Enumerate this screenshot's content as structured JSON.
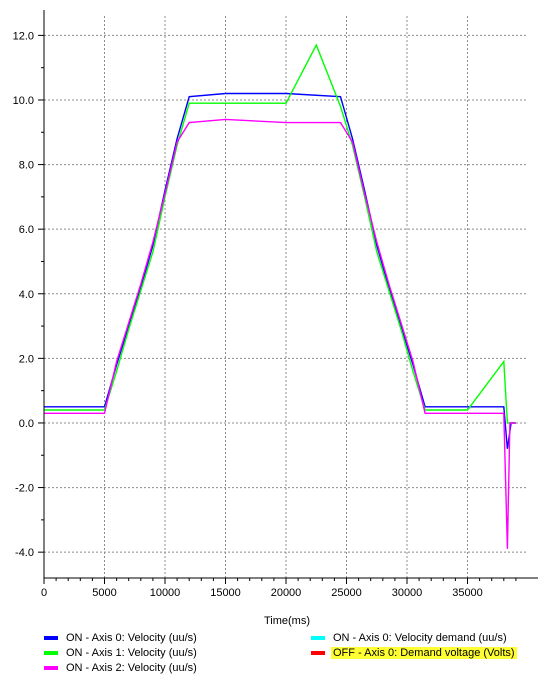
{
  "chart_data": {
    "type": "line",
    "xlabel": "Time(ms)",
    "ylabel": "",
    "xlim": [
      0,
      40000
    ],
    "ylim": [
      -4.8,
      12.6
    ],
    "xticks": [
      0,
      5000,
      10000,
      15000,
      20000,
      25000,
      30000,
      35000
    ],
    "xtick_labels": [
      "0",
      "5000",
      "10000",
      "15000",
      "20000",
      "25000",
      "30000",
      "35000"
    ],
    "yticks": [
      -4,
      -2,
      0,
      2,
      4,
      6,
      8,
      10,
      12
    ],
    "ytick_labels": [
      "-4.0",
      "-2.0",
      "0.0",
      "2.0",
      "4.0",
      "6.0",
      "8.0",
      "10.0",
      "12.0"
    ],
    "grid": true,
    "legend_position": "bottom",
    "series": [
      {
        "name": "Axis 0: Velocity (uu/s)",
        "state": "ON",
        "color": "#0000ff",
        "x": [
          0,
          5000,
          6000,
          7000,
          8000,
          9000,
          10000,
          11000,
          12000,
          15000,
          20000,
          24500,
          25500,
          26500,
          27500,
          28500,
          29500,
          30500,
          31500,
          35000,
          38000,
          38300,
          38600,
          39000
        ],
        "y": [
          0.5,
          0.5,
          1.8,
          3.0,
          4.2,
          5.5,
          7.2,
          8.8,
          10.1,
          10.2,
          10.2,
          10.1,
          8.8,
          7.2,
          5.5,
          4.2,
          3.0,
          1.8,
          0.5,
          0.5,
          0.5,
          -0.8,
          0.0,
          0.0
        ]
      },
      {
        "name": "Axis 1: Velocity (uu/s)",
        "state": "ON",
        "color": "#00ff00",
        "x": [
          0,
          5000,
          6000,
          7000,
          8000,
          9000,
          10000,
          11000,
          12000,
          15000,
          20000,
          22500,
          24500,
          25500,
          26500,
          27500,
          28500,
          29500,
          30500,
          31500,
          35000,
          38000,
          38300,
          39000
        ],
        "y": [
          0.4,
          0.4,
          1.6,
          2.9,
          4.1,
          5.3,
          7.0,
          8.6,
          9.9,
          9.9,
          9.9,
          11.7,
          9.8,
          8.6,
          7.0,
          5.3,
          4.1,
          2.9,
          1.6,
          0.4,
          0.4,
          1.9,
          0.0,
          0.0
        ]
      },
      {
        "name": "Axis 2: Velocity (uu/s)",
        "state": "ON",
        "color": "#ff00ff",
        "x": [
          0,
          5000,
          6000,
          7000,
          8000,
          9000,
          10000,
          11000,
          12000,
          15000,
          20000,
          24500,
          25500,
          26500,
          27500,
          28500,
          29500,
          30500,
          31500,
          35000,
          38000,
          38300,
          38500,
          39000
        ],
        "y": [
          0.3,
          0.3,
          1.9,
          3.1,
          4.3,
          5.6,
          7.1,
          8.7,
          9.3,
          9.4,
          9.3,
          9.3,
          8.7,
          7.1,
          5.6,
          4.3,
          3.1,
          1.9,
          0.3,
          0.3,
          0.3,
          -3.9,
          0.0,
          0.0
        ]
      },
      {
        "name": "Axis 0: Velocity demand (uu/s)",
        "state": "ON",
        "color": "#00ffff",
        "x": [],
        "y": []
      },
      {
        "name": "Axis 0: Demand voltage (Volts)",
        "state": "OFF",
        "color": "#ff0000",
        "x": [],
        "y": []
      }
    ]
  },
  "legend": [
    {
      "label": "ON  - Axis 0: Velocity (uu/s)",
      "color": "#0000ff",
      "highlight": false
    },
    {
      "label": "ON  - Axis 1: Velocity (uu/s)",
      "color": "#00ff00",
      "highlight": false
    },
    {
      "label": "ON  - Axis 2: Velocity (uu/s)",
      "color": "#ff00ff",
      "highlight": false
    },
    {
      "label": "ON  - Axis 0: Velocity demand (uu/s)",
      "color": "#00ffff",
      "highlight": false
    },
    {
      "label": "OFF - Axis 0: Demand voltage (Volts)",
      "color": "#ff0000",
      "highlight": true
    }
  ]
}
